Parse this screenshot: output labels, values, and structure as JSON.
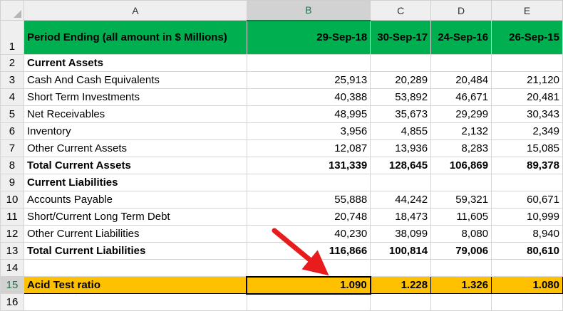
{
  "columns": [
    "A",
    "B",
    "C",
    "D",
    "E"
  ],
  "selected_column": "B",
  "selected_row": "15",
  "row_numbers": [
    "1",
    "2",
    "3",
    "4",
    "5",
    "6",
    "7",
    "8",
    "9",
    "10",
    "11",
    "12",
    "13",
    "14",
    "15",
    "16"
  ],
  "header": {
    "label": "Period Ending (all amount in $ Millions)",
    "dates": [
      "29-Sep-18",
      "30-Sep-17",
      "24-Sep-16",
      "26-Sep-15"
    ]
  },
  "current_assets": {
    "title": "Current Assets",
    "rows": [
      {
        "label": "Cash And Cash Equivalents",
        "values": [
          "25,913",
          "20,289",
          "20,484",
          "21,120"
        ]
      },
      {
        "label": "Short Term Investments",
        "values": [
          "40,388",
          "53,892",
          "46,671",
          "20,481"
        ]
      },
      {
        "label": "Net Receivables",
        "values": [
          "48,995",
          "35,673",
          "29,299",
          "30,343"
        ]
      },
      {
        "label": "Inventory",
        "values": [
          "3,956",
          "4,855",
          "2,132",
          "2,349"
        ]
      },
      {
        "label": "Other Current Assets",
        "values": [
          "12,087",
          "13,936",
          "8,283",
          "15,085"
        ]
      }
    ],
    "total": {
      "label": "Total Current Assets",
      "values": [
        "131,339",
        "128,645",
        "106,869",
        "89,378"
      ]
    }
  },
  "current_liabilities": {
    "title": "Current Liabilities",
    "rows": [
      {
        "label": "Accounts Payable",
        "values": [
          "55,888",
          "44,242",
          "59,321",
          "60,671"
        ]
      },
      {
        "label": "Short/Current Long Term Debt",
        "values": [
          "20,748",
          "18,473",
          "11,605",
          "10,999"
        ]
      },
      {
        "label": "Other Current Liabilities",
        "values": [
          "40,230",
          "38,099",
          "8,080",
          "8,940"
        ]
      }
    ],
    "total": {
      "label": "Total Current Liabilities",
      "values": [
        "116,866",
        "100,814",
        "79,006",
        "80,610"
      ]
    }
  },
  "acid_test": {
    "label": "Acid Test ratio",
    "values": [
      "1.090",
      "1.228",
      "1.326",
      "1.080"
    ]
  },
  "colors": {
    "header_green": "#00b050",
    "ratio_fill": "#ffc000",
    "arrow_red": "#e81c1c",
    "excel_accent": "#217346"
  }
}
